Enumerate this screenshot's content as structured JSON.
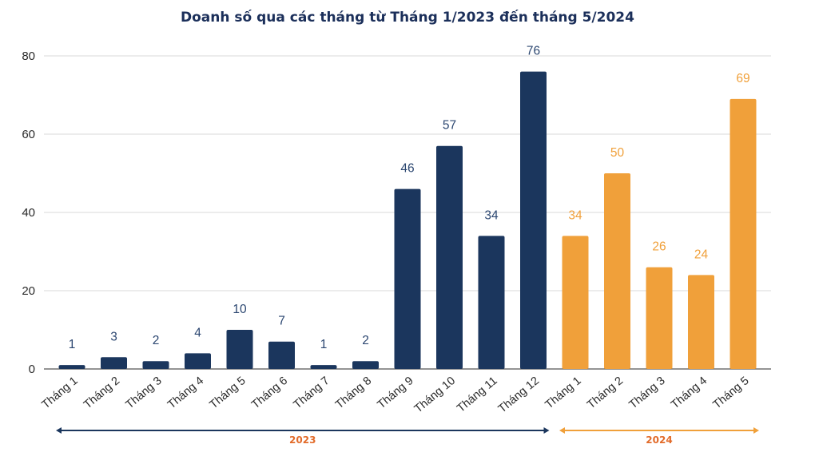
{
  "chart_data": {
    "type": "bar",
    "title": "Doanh số qua các tháng từ Tháng 1/2023 đến tháng 5/2024",
    "xlabel": "",
    "ylabel": "",
    "ylim": [
      0,
      80
    ],
    "yticks": [
      0,
      20,
      40,
      60,
      80
    ],
    "grid": true,
    "categories": [
      "Tháng 1",
      "Tháng 2",
      "Tháng 3",
      "Tháng 4",
      "Tháng 5",
      "Tháng 6",
      "Tháng 7",
      "Tháng 8",
      "Tháng 9",
      "Tháng 10",
      "Tháng 11",
      "Tháng 12",
      "Tháng 1",
      "Tháng 2",
      "Tháng 3",
      "Tháng 4",
      "Tháng 5"
    ],
    "values": [
      1,
      3,
      2,
      4,
      10,
      7,
      1,
      2,
      46,
      57,
      34,
      76,
      34,
      50,
      26,
      24,
      69
    ],
    "groups": [
      {
        "name": "2023",
        "start": 0,
        "end": 11,
        "color": "#1b365d",
        "label_color": "#e26b2a"
      },
      {
        "name": "2024",
        "start": 12,
        "end": 16,
        "color": "#f0a03a",
        "label_color": "#e26b2a"
      }
    ],
    "colors": {
      "bar_2023": "#1b365d",
      "bar_2024": "#f0a03a",
      "label_2023": "#2b4670",
      "label_2024": "#f0a03a",
      "grid": "#d9d9d9",
      "axis": "#555555"
    }
  }
}
